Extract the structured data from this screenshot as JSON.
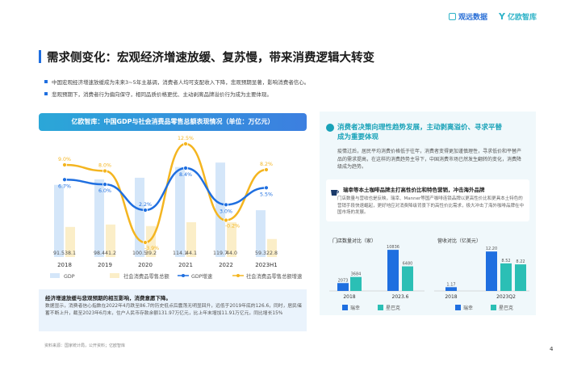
{
  "brand": {
    "logo1": "观远数据",
    "logo2": "亿欧智库"
  },
  "page_title": "需求侧变化：宏观经济增速放缓、复苏慢，带来消费逻辑大转变",
  "bullets": [
    "中国宏观经济增速放缓成为未来3~5年主基调，消费者人均可支配收入下降，悲观预期显著，影响消费者信心。",
    "悲观预期下，消费者行为偏向保守，相同品质价格更优、主动剥离品牌溢价行为成为主要体现。"
  ],
  "chart_data": [
    {
      "type": "bar",
      "title": "亿欧智库：中国GDP与社会消费品零售总额表现情况（单位：万亿元）",
      "categories": [
        "2018",
        "2019",
        "2020",
        "2021",
        "2022",
        "2023H1"
      ],
      "series": [
        {
          "name": "GDP",
          "type": "bar",
          "values": [
            91.5,
            98.4,
            100.5,
            114.1,
            119.7,
            59.3
          ],
          "color": "#d4e6f9"
        },
        {
          "name": "社会消费品零售总额",
          "type": "bar",
          "values": [
            38.1,
            41.2,
            39.2,
            44.1,
            44.0,
            22.8
          ],
          "color": "#fbeec8"
        },
        {
          "name": "GDP增速",
          "type": "line",
          "unit": "%",
          "values": [
            6.7,
            6.0,
            2.2,
            8.4,
            3.0,
            5.5
          ],
          "color": "#1f6fe0"
        },
        {
          "name": "社会消费品零售总额增速",
          "type": "line",
          "unit": "%",
          "values": [
            9.0,
            8.0,
            -3.9,
            12.5,
            -0.2,
            8.2
          ],
          "color": "#f4b520"
        }
      ],
      "value_labels": {
        "gdp": [
          "91.5",
          "98.4",
          "100.5",
          "114.1",
          "119.7",
          "59.3"
        ],
        "retail": [
          "38.1",
          "41.2",
          "39.2",
          "44.1",
          "44.0",
          "22.8"
        ],
        "gdp_growth": [
          "6.7%",
          "6.0%",
          "2.2%",
          "8.4%",
          "3.0%",
          "5.5%"
        ],
        "retail_growth": [
          "9.0%",
          "8.0%",
          "-3.9%",
          "12.5%",
          "-0.2%",
          "8.2%"
        ]
      },
      "legend": [
        "GDP",
        "社会消费品零售总额",
        "GDP增速",
        "社会消费品零售总额增速"
      ]
    },
    {
      "type": "bar",
      "title": "门店数量对比（家）",
      "categories": [
        "2018",
        "2023.6"
      ],
      "series": [
        {
          "name": "瑞幸",
          "values": [
            2073,
            10836
          ],
          "color": "#1f6fe0"
        },
        {
          "name": "星巴克",
          "values": [
            3684,
            6480
          ],
          "color": "#2bbfb5"
        }
      ],
      "labels": [
        "2073",
        "10836",
        "3684",
        "6480"
      ]
    },
    {
      "type": "bar",
      "title": "营收对比（亿美元）",
      "categories": [
        "2018",
        "2023Q2"
      ],
      "series": [
        {
          "name": "瑞幸",
          "values": [
            1.17,
            12.2
          ],
          "color": "#1f6fe0"
        },
        {
          "name": "星巴克",
          "values": [
            null,
            8.52
          ],
          "color": "#2bbfb5"
        },
        {
          "name": "",
          "values": [
            null,
            8.22
          ],
          "color": "#2bbfb5"
        }
      ],
      "labels": [
        "1.17",
        "12.20",
        "8.52",
        "8.22"
      ]
    }
  ],
  "note": {
    "title": "经济增速放缓与悲观预期的相互影响，消费意愿下降。",
    "body": "数据显示，消费者信心指数在2022年4月跌至86.7的历史低点后震荡无明显回升，远低于2019年底的126.6，同时，居民储蓄不断上升，截至2023年6月末，住户人民币存款余额131.97万亿元，比上年末增加11.91万亿元，同比增长15%"
  },
  "source": "资料来源：国家统计局，公开资料；亿欧智库",
  "right": {
    "title": "消费者决策向理性趋势发展，主动剥离溢价、寻求平替成为重要体现",
    "text": "疫情过后，居民平均消费价格低于往年，消费者变得更加谨慎理性，寻求低价和平替产品的需求提高，在这样的消费趋势主导下，中国消费市场已然发生翻转的变化，消费降级成为趋势。",
    "case_title": "瑞幸等本土咖啡品牌主打高性价比和特色营销，冲击海外品牌",
    "case_body": "门店数量与营收也是反映，瑞幸、Manner等国产咖啡连锁品牌以更高性价比和更具本土特色的营销手段快速崛起，更好地应对消费降级背景下的高性价比需求，极大冲击了海外咖啡品牌在中国市场的发展。",
    "legend": [
      "瑞幸",
      "星巴克"
    ]
  },
  "page_number": "4"
}
